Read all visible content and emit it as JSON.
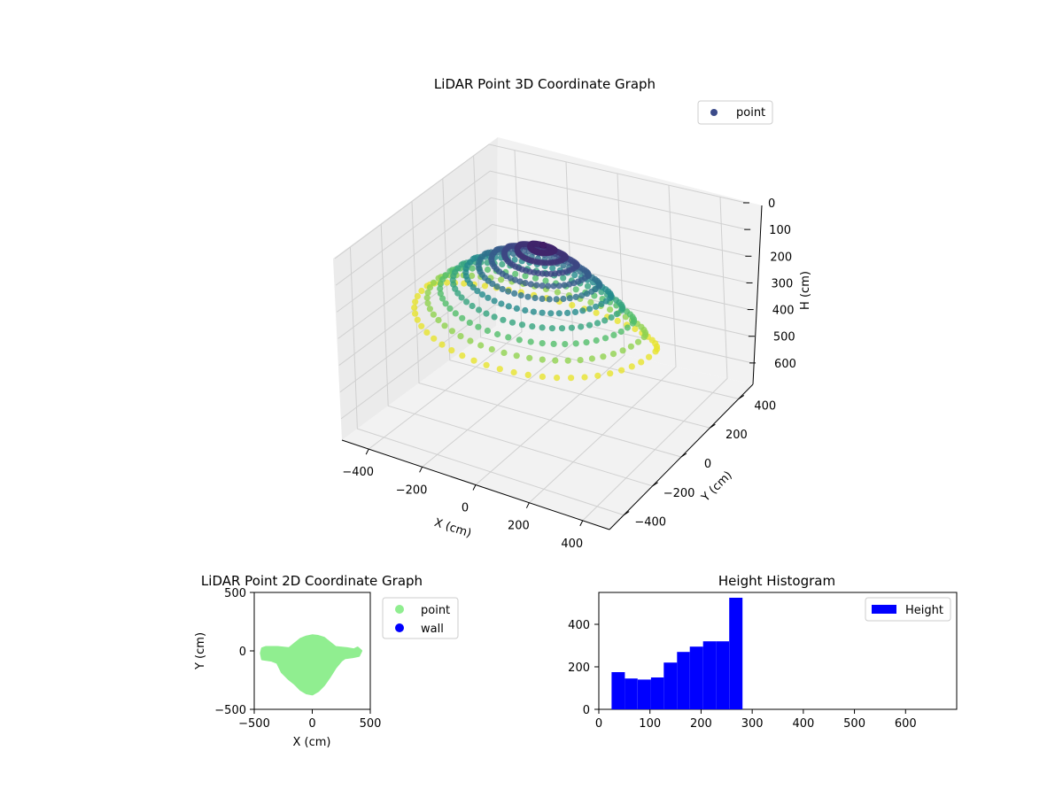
{
  "chart_data": [
    {
      "type": "scatter3d",
      "title": "LiDAR Point 3D Coordinate Graph",
      "xlabel": "X (cm)",
      "ylabel": "Y (cm)",
      "zlabel": "H (cm)",
      "xticks": [
        "−400",
        "−200",
        "0",
        "200",
        "400"
      ],
      "yticks": [
        "−400",
        "−200",
        "0",
        "200",
        "400"
      ],
      "zticks": [
        "0",
        "100",
        "200",
        "300",
        "400",
        "500",
        "600"
      ],
      "xlim": [
        -500,
        500
      ],
      "ylim": [
        -500,
        500
      ],
      "zlim": [
        0,
        680
      ],
      "z_axis_inverted": true,
      "colormap": "viridis",
      "grid": true,
      "legend": {
        "position": "top-right",
        "entries": [
          {
            "name": "point",
            "color": "#3b4b8a"
          }
        ]
      },
      "series": [
        {
          "name": "point",
          "description_points": {
            "outer_ring": {
              "x_range": [
                -420,
                450
              ],
              "y_range": [
                -400,
                130
              ],
              "h": 280
            },
            "dome_peak": {
              "x": 0,
              "y": 0,
              "h": 25
            }
          }
        }
      ]
    },
    {
      "type": "scatter",
      "title": "LiDAR Point 2D Coordinate Graph",
      "xlabel": "X (cm)",
      "ylabel": "Y (cm)",
      "xlim": [
        -500,
        500
      ],
      "ylim": [
        -500,
        500
      ],
      "xticks": [
        "−500",
        "0",
        "500"
      ],
      "yticks": [
        "−500",
        "0",
        "500"
      ],
      "legend": {
        "position": "outside-right",
        "entries": [
          {
            "name": "point",
            "color": "#90ee90"
          },
          {
            "name": "wall",
            "color": "#0000ff"
          }
        ]
      },
      "series": [
        {
          "name": "point",
          "color": "#90ee90",
          "outline": [
            [
              -430,
              20
            ],
            [
              -400,
              30
            ],
            [
              -300,
              30
            ],
            [
              -200,
              20
            ],
            [
              -150,
              60
            ],
            [
              -100,
              100
            ],
            [
              -50,
              120
            ],
            [
              0,
              130
            ],
            [
              50,
              125
            ],
            [
              100,
              110
            ],
            [
              150,
              70
            ],
            [
              200,
              30
            ],
            [
              300,
              20
            ],
            [
              360,
              10
            ],
            [
              390,
              25
            ],
            [
              420,
              0
            ],
            [
              400,
              -40
            ],
            [
              350,
              -50
            ],
            [
              280,
              -60
            ],
            [
              250,
              -80
            ],
            [
              200,
              -140
            ],
            [
              150,
              -220
            ],
            [
              100,
              -290
            ],
            [
              50,
              -340
            ],
            [
              0,
              -370
            ],
            [
              -50,
              -360
            ],
            [
              -100,
              -330
            ],
            [
              -150,
              -280
            ],
            [
              -200,
              -240
            ],
            [
              -260,
              -180
            ],
            [
              -300,
              -100
            ],
            [
              -350,
              -80
            ],
            [
              -430,
              -70
            ],
            [
              -440,
              -20
            ]
          ]
        },
        {
          "name": "wall",
          "color": "#0000ff",
          "points": []
        }
      ]
    },
    {
      "type": "bar",
      "title": "Height Histogram",
      "xlim": [
        0,
        700
      ],
      "ylim": [
        0,
        550
      ],
      "xticks": [
        "0",
        "100",
        "200",
        "300",
        "400",
        "500",
        "600"
      ],
      "yticks": [
        "0",
        "200",
        "400"
      ],
      "legend": {
        "position": "top-right",
        "entries": [
          {
            "name": "Height",
            "color": "#0000ff"
          }
        ]
      },
      "series": [
        {
          "name": "Height",
          "color": "#0000ff",
          "bin_edges": [
            25,
            51,
            76,
            102,
            127,
            153,
            178,
            204,
            230,
            255,
            281
          ],
          "values": [
            175,
            145,
            140,
            150,
            220,
            270,
            295,
            320,
            320,
            525
          ]
        }
      ]
    }
  ]
}
